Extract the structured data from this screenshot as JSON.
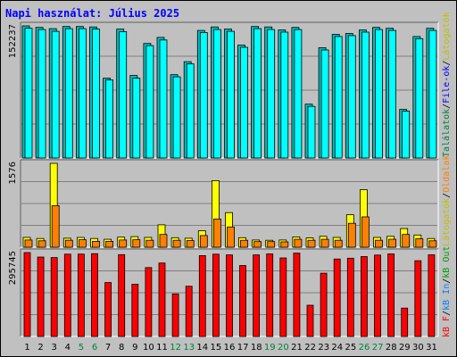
{
  "title": "Napi használat: Július 2025",
  "chart_data": [
    {
      "type": "bar",
      "panel": "top",
      "y_max_label": "152237",
      "ylim": [
        0,
        152237
      ],
      "grid": true,
      "series": [
        {
          "name": "Találatok",
          "color": "#00c0c0",
          "values": [
            152237,
            150500,
            149000,
            151500,
            151500,
            151000,
            92000,
            148500,
            95000,
            132000,
            139000,
            96000,
            111000,
            147000,
            151000,
            148500,
            130000,
            151500,
            151000,
            147500,
            150500,
            62000,
            127000,
            142500,
            143500,
            147500,
            150500,
            149500,
            56000,
            140000,
            149500
          ]
        },
        {
          "name": "Fájlok",
          "color": "#00ffff",
          "values": [
            149500,
            148000,
            146000,
            149000,
            149000,
            148500,
            90000,
            145500,
            92000,
            129500,
            136000,
            93500,
            108500,
            144500,
            148000,
            146000,
            127500,
            149000,
            148000,
            145000,
            148000,
            59500,
            124500,
            140000,
            141000,
            145000,
            148000,
            147000,
            54000,
            137500,
            147000
          ]
        },
        {
          "name": "Látogatók",
          "color": "#0000ff",
          "values": [
            50,
            49,
            48,
            49,
            49,
            48,
            30,
            48,
            31,
            43,
            45,
            31,
            36,
            47,
            49,
            48,
            42,
            49,
            48,
            47,
            48,
            20,
            41,
            46,
            46,
            47,
            48,
            48,
            18,
            45,
            48
          ]
        }
      ]
    },
    {
      "type": "bar",
      "panel": "middle",
      "y_max_label": "1576",
      "ylim": [
        0,
        1576
      ],
      "grid": true,
      "series": [
        {
          "name": "Látogatók",
          "color": "#ffff00",
          "values": [
            185,
            165,
            1576,
            170,
            185,
            165,
            150,
            190,
            200,
            185,
            420,
            180,
            170,
            310,
            1250,
            650,
            180,
            135,
            130,
            135,
            195,
            175,
            205,
            185,
            610,
            1080,
            185,
            205,
            350,
            230,
            165
          ]
        },
        {
          "name": "Oldalak",
          "color": "#ff8000",
          "values": [
            135,
            120,
            780,
            130,
            140,
            110,
            110,
            135,
            140,
            130,
            240,
            130,
            125,
            220,
            530,
            380,
            130,
            105,
            105,
            100,
            150,
            130,
            150,
            130,
            450,
            570,
            130,
            150,
            240,
            160,
            120
          ]
        }
      ]
    },
    {
      "type": "bar",
      "panel": "bottom",
      "y_max_label": "295745",
      "ylim": [
        0,
        295745
      ],
      "grid": true,
      "series": [
        {
          "name": "kB F",
          "color": "#ff0000",
          "values": [
            295745,
            280000,
            278000,
            290000,
            290500,
            292000,
            190000,
            288500,
            184000,
            243000,
            259000,
            150000,
            177000,
            285000,
            290000,
            287500,
            250000,
            287500,
            291000,
            277000,
            294000,
            110000,
            223000,
            273000,
            276000,
            281500,
            287000,
            291000,
            100000,
            267000,
            288000
          ]
        }
      ]
    }
  ],
  "days": [
    "1",
    "2",
    "3",
    "4",
    "5",
    "6",
    "7",
    "8",
    "9",
    "10",
    "11",
    "12",
    "13",
    "14",
    "15",
    "16",
    "17",
    "18",
    "19",
    "20",
    "21",
    "22",
    "23",
    "24",
    "25",
    "26",
    "27",
    "28",
    "29",
    "30",
    "31"
  ],
  "weekend_days": [
    "5",
    "6",
    "12",
    "13",
    "19",
    "20",
    "26",
    "27"
  ],
  "colors": {
    "weekday": "#000000",
    "weekend": "#008040",
    "title": "#0000ff",
    "grid": "#808080",
    "axis": "#000000",
    "highlight": "#ffffff",
    "shadow": "#606060"
  },
  "right_labels": {
    "top": [
      {
        "text": "Találatok",
        "color": "#008040"
      },
      {
        "text": "/",
        "color": "#000000"
      },
      {
        "text": "File-ok",
        "color": "#0000ff"
      },
      {
        "text": "/",
        "color": "#000000"
      },
      {
        "text": "Látogatók",
        "color": "#c0c000"
      }
    ],
    "middle": [
      {
        "text": "Látogatók",
        "color": "#c0c000"
      },
      {
        "text": "/",
        "color": "#000000"
      },
      {
        "text": "Oldalak",
        "color": "#ff8000"
      }
    ],
    "bottom": [
      {
        "text": "kB F",
        "color": "#ff0000"
      },
      {
        "text": "/",
        "color": "#000000"
      },
      {
        "text": "kB In",
        "color": "#0080ff"
      },
      {
        "text": "/",
        "color": "#000000"
      },
      {
        "text": "kB Out",
        "color": "#00a000"
      }
    ]
  }
}
